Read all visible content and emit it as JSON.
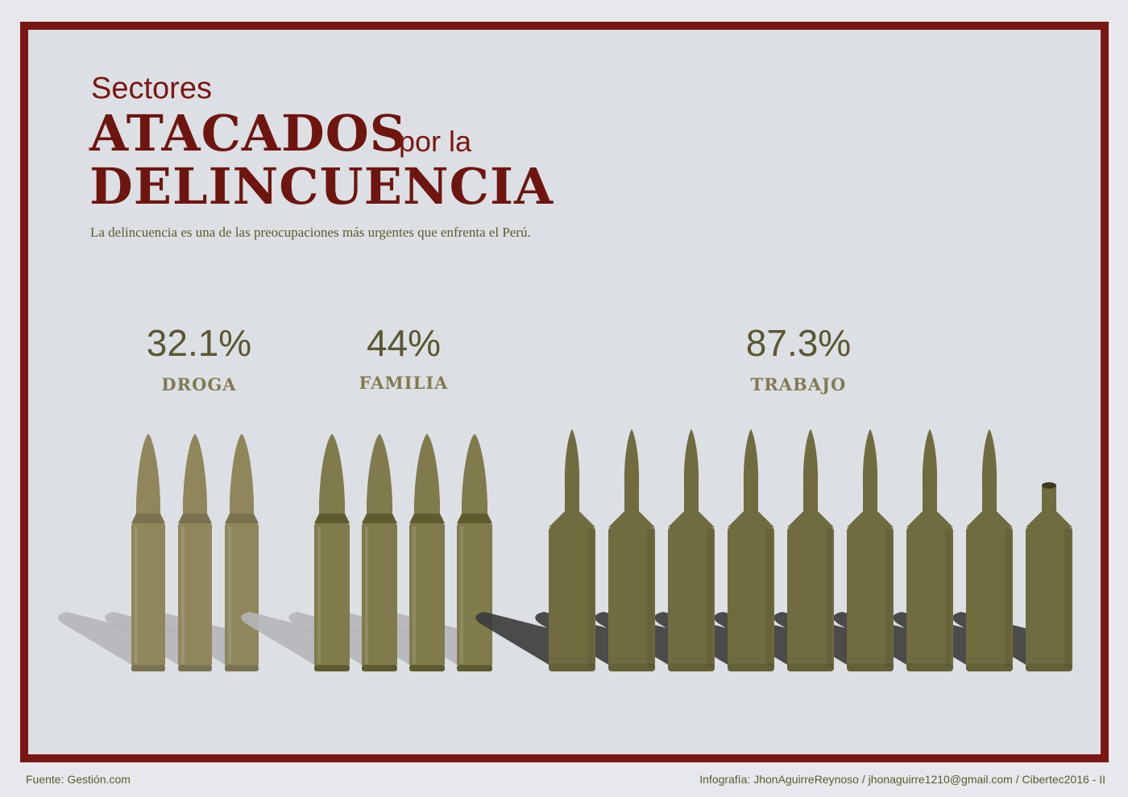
{
  "header": {
    "pre_title": "Sectores",
    "title_line1": "ATACADOS",
    "title_connector": "por la",
    "title_line2": "DELINCUENCIA",
    "subtitle": "La delincuencia es una de las preocupaciones más urgentes que enfrenta el Perú."
  },
  "colors": {
    "frame": "#7a1714",
    "title": "#6e1510",
    "droga_bullet": "#8f865b",
    "familia_bullet": "#7f7b4c",
    "trabajo_bullet": "#6f6c3f",
    "shadow_light": "#b5b6b8",
    "shadow_dark": "#3b3b3b"
  },
  "categories": [
    {
      "id": "droga",
      "label": "DROGA",
      "percent_label": "32.1%",
      "percent": 32.1
    },
    {
      "id": "familia",
      "label": "FAMILIA",
      "percent_label": "44%",
      "percent": 44
    },
    {
      "id": "trabajo",
      "label": "TRABAJO",
      "percent_label": "87.3%",
      "percent": 87.3
    }
  ],
  "icons": {
    "unit": "bullet-icon",
    "partial": "empty-casing-icon"
  },
  "footer": {
    "source": "Fuente: Gestión.com",
    "credits": "Infografía: JhonAguirreReynoso / jhonaguirre1210@gmail.com / Cibertec2016 - II"
  }
}
